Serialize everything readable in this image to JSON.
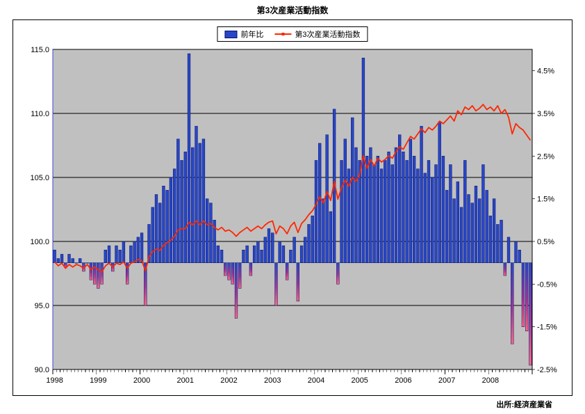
{
  "title": "第3次産業活動指数",
  "source": "出所:経済産業省",
  "legend": {
    "bar_label": "前年比",
    "line_label": "第3次産業活動指数"
  },
  "colors": {
    "bar_fill": "#2946c4",
    "bar_border": "#001070",
    "bar_negative_stops": [
      "#2946c4",
      "#a03898",
      "#ff6680"
    ],
    "line": "#ff2600",
    "plot_bg": "#c0c0c0",
    "grid": "#000000",
    "axis": "#000000",
    "left_axis_line": "#3b48d8"
  },
  "chart_data": {
    "type": "combo",
    "title": "第3次産業活動指数",
    "x_unit": "month",
    "years": [
      "1998",
      "1999",
      "2000",
      "2001",
      "2002",
      "2003",
      "2004",
      "2005",
      "2006",
      "2007",
      "2008"
    ],
    "left_axis": {
      "min": 90,
      "max": 115,
      "ticks": [
        115,
        110,
        105,
        100,
        95,
        90
      ],
      "labels": [
        "115.0",
        "110.0",
        "105.0",
        "100.0",
        "95.0",
        "90.0"
      ]
    },
    "right_axis": {
      "min": -2.5,
      "max": 5.0,
      "ticks": [
        4.5,
        3.5,
        2.5,
        1.5,
        0.5,
        -0.5,
        -1.5,
        -2.5
      ],
      "labels": [
        "4.5%",
        "3.5%",
        "2.5%",
        "1.5%",
        "0.5%",
        "-0.5%",
        "-1.5%",
        "-2.5%"
      ]
    },
    "grid_values_left": [
      110,
      105,
      100,
      95
    ],
    "series": [
      {
        "name": "前年比",
        "type": "bar",
        "axis": "right",
        "unit": "%",
        "values": [
          0.3,
          0.1,
          0.2,
          -0.1,
          0.2,
          0.1,
          0.0,
          0.1,
          -0.2,
          0.0,
          -0.4,
          -0.5,
          -0.6,
          -0.5,
          0.3,
          0.4,
          -0.2,
          0.4,
          0.3,
          0.5,
          -0.5,
          0.4,
          0.5,
          0.6,
          0.7,
          -1.0,
          0.9,
          1.3,
          1.6,
          1.4,
          1.8,
          1.7,
          2.0,
          2.2,
          2.9,
          2.4,
          2.6,
          4.9,
          2.7,
          3.2,
          2.8,
          2.9,
          1.5,
          1.4,
          1.0,
          0.4,
          0.3,
          -0.3,
          -0.4,
          -0.5,
          -1.3,
          -0.6,
          0.3,
          0.4,
          -0.3,
          0.4,
          0.5,
          0.3,
          0.6,
          0.8,
          0.7,
          -1.0,
          0.5,
          0.4,
          -0.4,
          0.3,
          0.6,
          -0.9,
          0.4,
          0.6,
          0.9,
          1.1,
          2.4,
          2.8,
          1.5,
          3.0,
          1.2,
          3.6,
          -0.5,
          2.4,
          2.9,
          2.2,
          3.4,
          2.7,
          2.4,
          4.8,
          2.5,
          2.7,
          2.3,
          2.5,
          2.2,
          2.4,
          2.6,
          2.3,
          2.7,
          3.0,
          2.6,
          2.4,
          2.9,
          2.5,
          2.2,
          3.2,
          2.1,
          2.4,
          2.0,
          2.3,
          3.3,
          2.5,
          1.7,
          2.3,
          1.5,
          1.9,
          1.3,
          2.4,
          1.6,
          1.4,
          1.8,
          1.5,
          2.3,
          1.7,
          1.1,
          1.5,
          0.9,
          1.0,
          -0.3,
          0.6,
          -1.9,
          0.5,
          0.3,
          -1.5,
          -1.6,
          -2.4
        ]
      },
      {
        "name": "第3次産業活動指数",
        "type": "line",
        "axis": "left",
        "values": [
          98.4,
          98.1,
          98.3,
          97.9,
          98.2,
          98.0,
          98.2,
          98.1,
          97.9,
          98.2,
          97.8,
          98.0,
          97.8,
          97.6,
          98.1,
          98.3,
          98.0,
          98.3,
          98.2,
          98.4,
          97.9,
          98.3,
          98.4,
          98.6,
          98.5,
          97.7,
          98.8,
          99.2,
          99.4,
          99.3,
          99.7,
          99.9,
          100.1,
          100.4,
          100.9,
          101.0,
          101.0,
          101.5,
          101.3,
          101.6,
          101.3,
          101.6,
          101.3,
          101.4,
          101.1,
          100.9,
          101.1,
          100.8,
          100.9,
          100.7,
          100.4,
          100.7,
          100.9,
          101.1,
          100.8,
          101.0,
          101.2,
          101.0,
          101.3,
          101.5,
          101.6,
          100.6,
          101.2,
          101.0,
          100.6,
          101.2,
          101.5,
          100.7,
          101.4,
          101.7,
          102.1,
          102.4,
          102.9,
          103.5,
          103.0,
          103.9,
          103.2,
          104.7,
          103.3,
          104.2,
          104.8,
          104.3,
          105.0,
          104.7,
          105.2,
          106.7,
          105.7,
          106.4,
          105.9,
          106.5,
          106.2,
          106.4,
          106.7,
          106.5,
          107.0,
          107.4,
          107.2,
          107.7,
          108.2,
          108.0,
          108.4,
          108.8,
          108.5,
          108.9,
          108.7,
          109.0,
          109.4,
          109.2,
          109.5,
          109.8,
          109.4,
          110.2,
          109.9,
          110.5,
          110.3,
          110.6,
          110.2,
          110.4,
          110.7,
          110.3,
          110.5,
          110.2,
          110.6,
          110.0,
          110.3,
          109.7,
          108.4,
          109.2,
          108.9,
          108.7,
          108.3,
          107.9
        ]
      }
    ]
  }
}
